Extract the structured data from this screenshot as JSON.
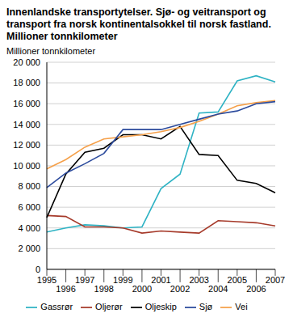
{
  "chart_data": {
    "type": "line",
    "title": "Innenlandske transportytelser. Sjø- og veitransport og transport fra norsk kontinentalsokkel til norsk fastland. Millioner tonnkilometer",
    "y_label": "Millioner tonnkilometer",
    "categories": [
      "1995",
      "1996",
      "1997",
      "1998",
      "1999",
      "2000",
      "2001",
      "2002",
      "2003",
      "2004",
      "2005",
      "2006",
      "2007"
    ],
    "series": [
      {
        "name": "Gassrør",
        "color": "#2fb3c4",
        "values": [
          3600,
          4000,
          4300,
          4200,
          4000,
          4100,
          7800,
          9200,
          15100,
          15200,
          18200,
          18700,
          18100
        ]
      },
      {
        "name": "Oljerør",
        "color": "#a63a2a",
        "values": [
          5200,
          5100,
          4100,
          4100,
          4000,
          3500,
          3700,
          3600,
          3500,
          4700,
          4600,
          4500,
          4200
        ]
      },
      {
        "name": "Oljeskip",
        "color": "#000000",
        "values": [
          5000,
          9200,
          11300,
          11700,
          13000,
          13000,
          12600,
          13800,
          11100,
          11000,
          8600,
          8300,
          7400
        ]
      },
      {
        "name": "Vei",
        "color": "#f5a04a",
        "values": [
          9700,
          10600,
          11800,
          12600,
          12800,
          13000,
          13300,
          13700,
          14300,
          15000,
          15800,
          16100,
          16300
        ]
      },
      {
        "name": "Sjø",
        "color": "#2b4a9c",
        "values": [
          7900,
          9300,
          10200,
          11200,
          13500,
          13500,
          13500,
          14000,
          14500,
          15000,
          15300,
          16000,
          16200
        ]
      }
    ],
    "ylim": [
      0,
      20000
    ],
    "yticks": [
      0,
      {
        "value": 2000,
        "label": "2 000"
      },
      {
        "value": 4000,
        "label": "4 000"
      },
      {
        "value": 6000,
        "label": "6 000"
      },
      {
        "value": 8000,
        "label": "8 000"
      },
      {
        "value": 10000,
        "label": "10 000"
      },
      {
        "value": 12000,
        "label": "12 000"
      },
      {
        "value": 14000,
        "label": "14 000"
      },
      {
        "value": 16000,
        "label": "16 000"
      },
      {
        "value": 18000,
        "label": "18 000"
      },
      {
        "value": 20000,
        "label": "20 000"
      }
    ],
    "grid": true,
    "legend": "bottom"
  }
}
